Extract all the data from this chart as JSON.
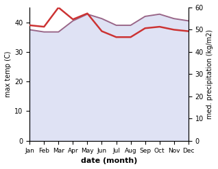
{
  "months": [
    "Jan",
    "Feb",
    "Mar",
    "Apr",
    "May",
    "Jun",
    "Jul",
    "Aug",
    "Sep",
    "Oct",
    "Nov",
    "Dec"
  ],
  "temp_data": [
    39.0,
    38.5,
    45.0,
    41.0,
    43.0,
    37.0,
    35.0,
    35.0,
    38.0,
    38.5,
    37.5,
    37.0
  ],
  "precip_data": [
    50,
    49,
    49,
    54,
    57,
    55,
    52,
    52,
    56,
    57,
    55,
    54
  ],
  "temp_color": "#cc3333",
  "precip_line_color": "#996688",
  "precip_fill_color": "#b8c0e8",
  "temp_ylim": [
    0,
    45
  ],
  "precip_ylim": [
    0,
    60
  ],
  "xlabel": "date (month)",
  "ylabel_left": "max temp (C)",
  "ylabel_right": "med. precipitation (kg/m2)",
  "temp_yticks": [
    0,
    10,
    20,
    30,
    40
  ],
  "precip_yticks": [
    0,
    10,
    20,
    30,
    40,
    50,
    60
  ],
  "bg_color": "#ffffff",
  "temp_linewidth": 1.8,
  "precip_linewidth": 1.4,
  "fill_alpha": 0.45
}
